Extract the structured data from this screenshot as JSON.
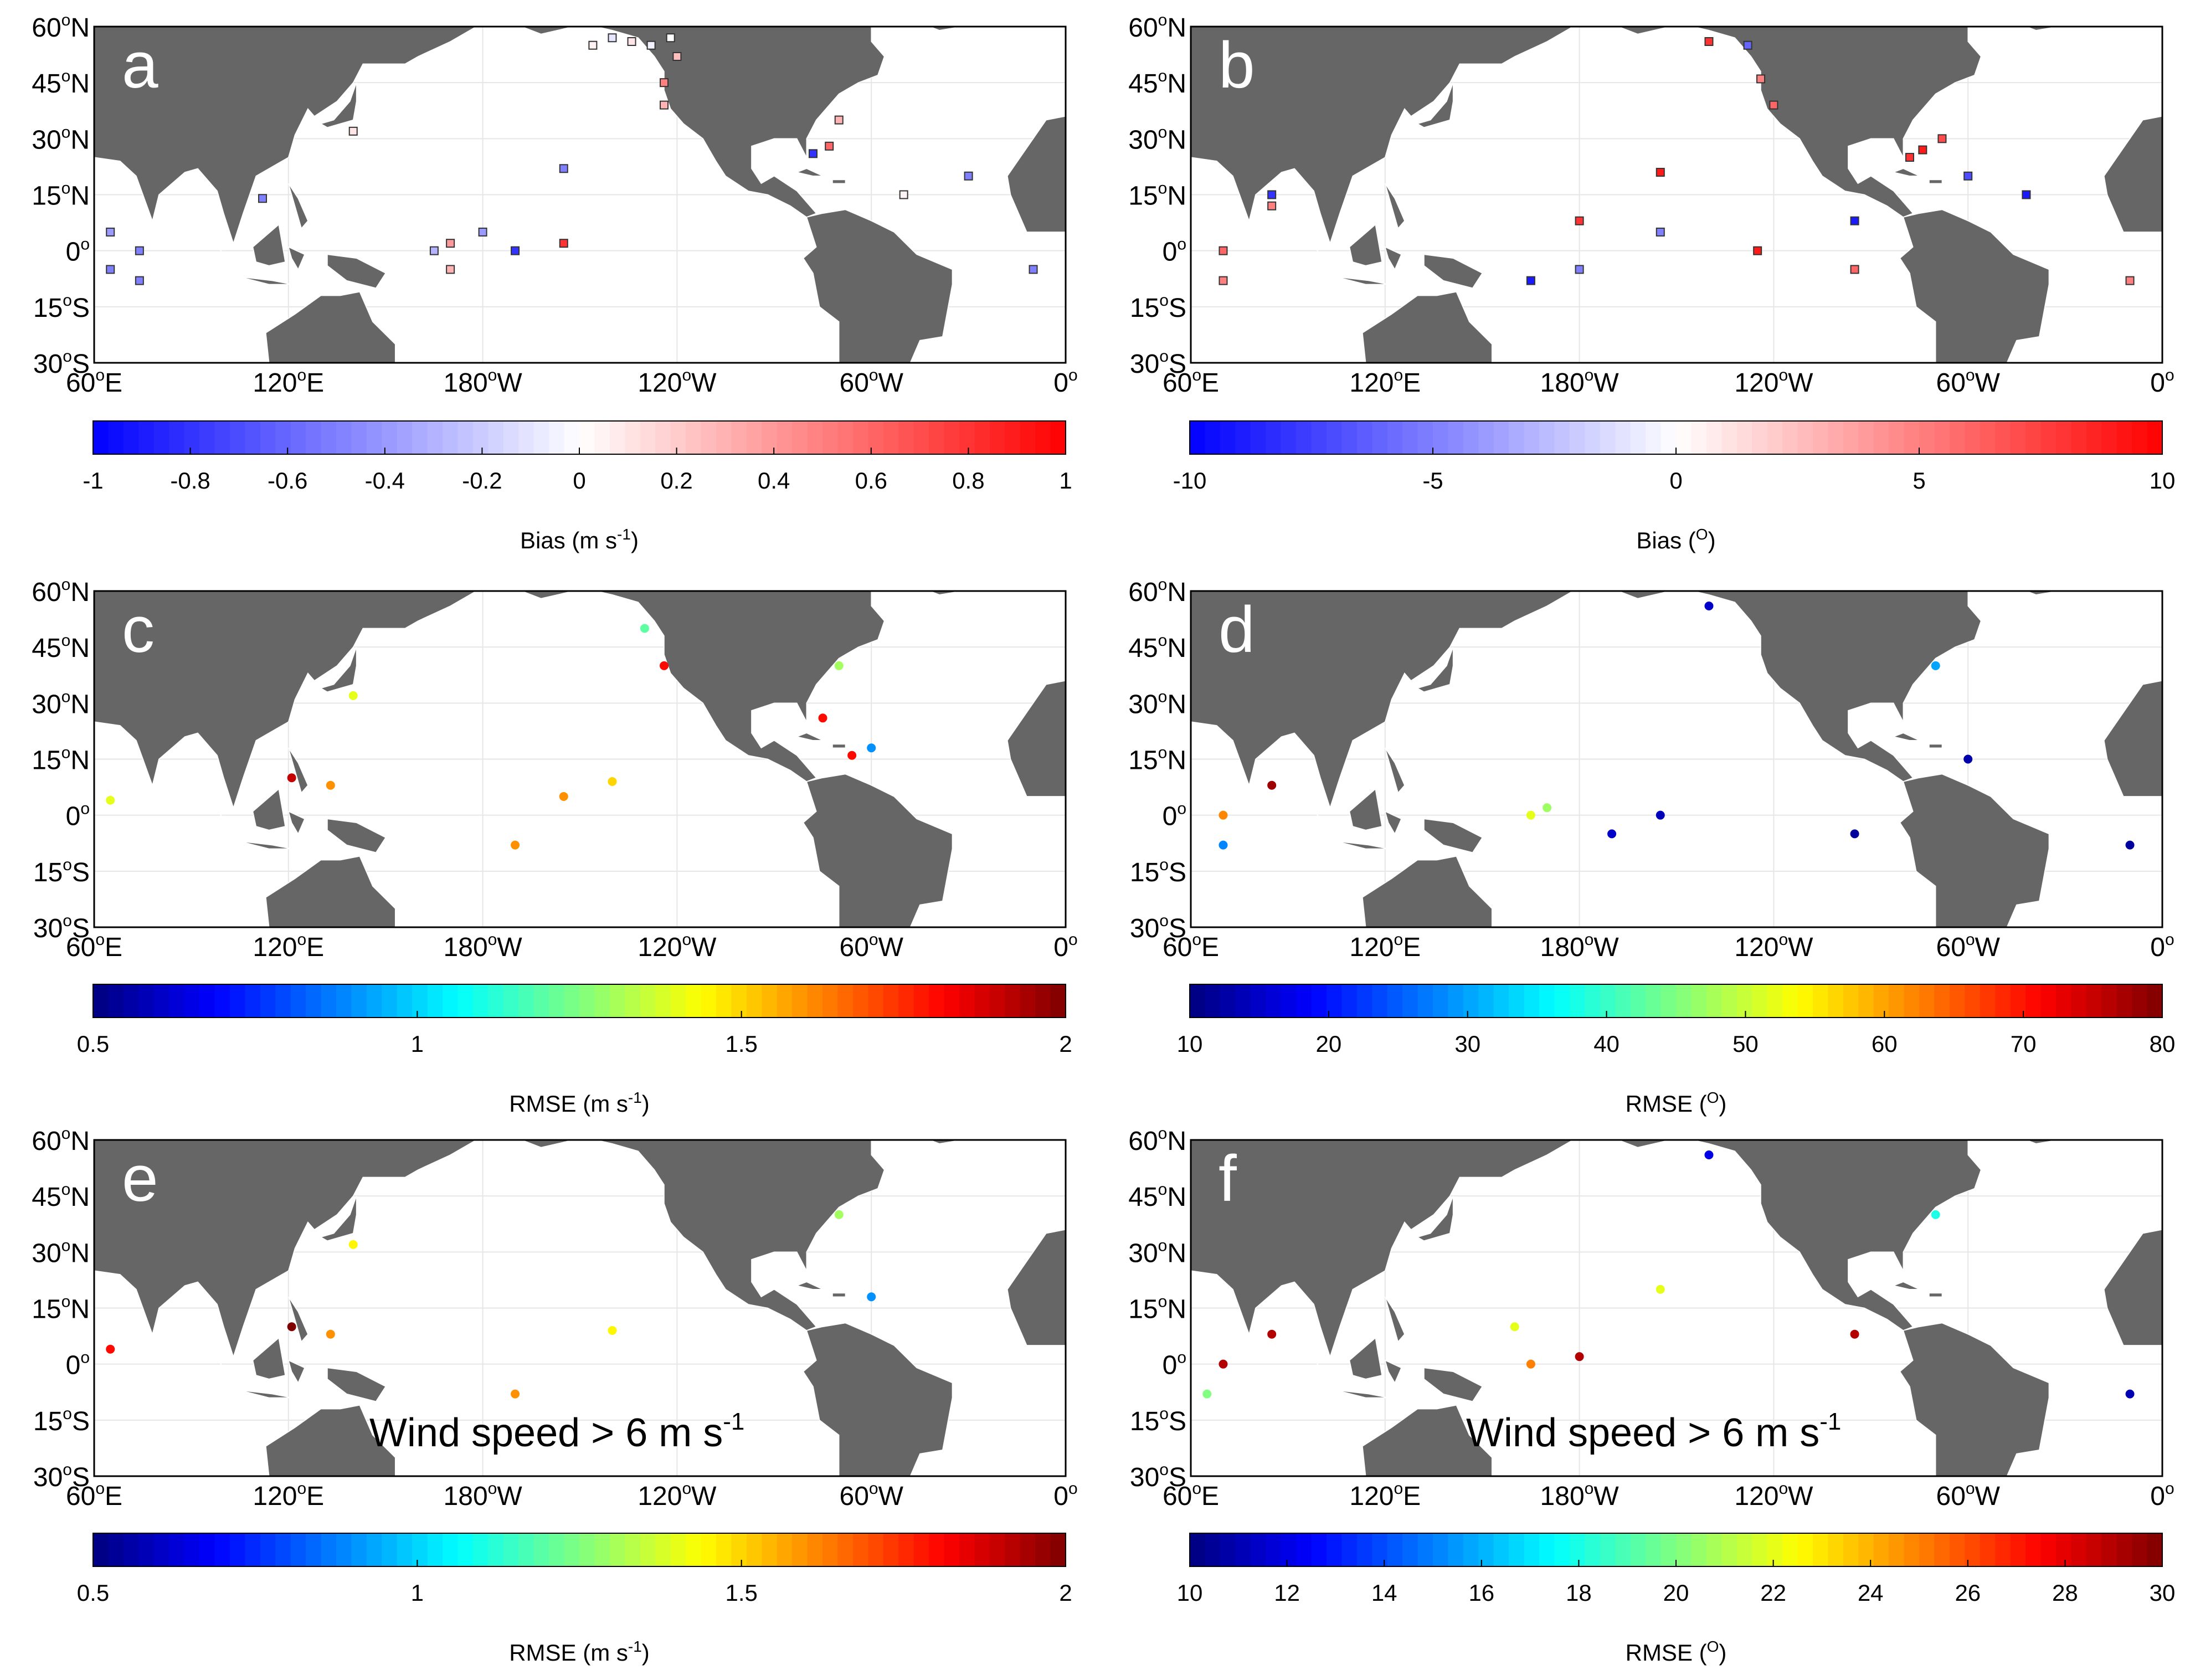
{
  "chart_data": [
    {
      "panel": "a",
      "type": "scatter",
      "marker": "square",
      "lat_ticks": [
        "60",
        "45",
        "30",
        "15",
        "0",
        "15",
        "30"
      ],
      "lat_hemi": [
        "N",
        "N",
        "N",
        "N",
        "",
        "S",
        "S"
      ],
      "lon_ticks": [
        "60",
        "120",
        "180",
        "120",
        "60",
        "0"
      ],
      "lon_hemi": [
        "E",
        "E",
        "W",
        "W",
        "W",
        ""
      ],
      "colormap": "bwr",
      "clim": [
        -1,
        1
      ],
      "colorbar_ticks": [
        "-1",
        "-0.8",
        "-0.6",
        "-0.4",
        "-0.2",
        "0",
        "0.2",
        "0.4",
        "0.6",
        "0.8",
        "1"
      ],
      "colorbar_label": "Bias (m s",
      "colorbar_label_sup": "-1",
      "colorbar_label_end": ")",
      "points": [
        {
          "lon": 214,
          "lat": 55,
          "value": 0.05
        },
        {
          "lon": 220,
          "lat": 57,
          "value": -0.1
        },
        {
          "lon": 226,
          "lat": 56,
          "value": 0.1
        },
        {
          "lon": 232,
          "lat": 55,
          "value": -0.05
        },
        {
          "lon": 238,
          "lat": 57,
          "value": 0.0
        },
        {
          "lon": 240,
          "lat": 52,
          "value": 0.25
        },
        {
          "lon": 236,
          "lat": 45,
          "value": 0.5
        },
        {
          "lon": 236,
          "lat": 39,
          "value": 0.3
        },
        {
          "lon": 287,
          "lat": 28,
          "value": 0.6
        },
        {
          "lon": 282,
          "lat": 26,
          "value": -0.8
        },
        {
          "lon": 290,
          "lat": 35,
          "value": 0.3
        },
        {
          "lon": 112,
          "lat": 14,
          "value": -0.5
        },
        {
          "lon": 65,
          "lat": 5,
          "value": -0.4
        },
        {
          "lon": 65,
          "lat": -5,
          "value": -0.5
        },
        {
          "lon": 74,
          "lat": 0,
          "value": -0.5
        },
        {
          "lon": 74,
          "lat": -8,
          "value": -0.5
        },
        {
          "lon": 330,
          "lat": 20,
          "value": -0.5
        },
        {
          "lon": 350,
          "lat": -5,
          "value": -0.5
        },
        {
          "lon": 170,
          "lat": 2,
          "value": 0.4
        },
        {
          "lon": 170,
          "lat": -5,
          "value": 0.3
        },
        {
          "lon": 190,
          "lat": 0,
          "value": -0.8
        },
        {
          "lon": 205,
          "lat": 2,
          "value": 0.8
        },
        {
          "lon": 165,
          "lat": 0,
          "value": -0.3
        },
        {
          "lon": 180,
          "lat": 5,
          "value": -0.4
        },
        {
          "lon": 140,
          "lat": 32,
          "value": 0.1
        },
        {
          "lon": 205,
          "lat": 22,
          "value": -0.5
        },
        {
          "lon": 310,
          "lat": 15,
          "value": 0.05
        }
      ]
    },
    {
      "panel": "b",
      "type": "scatter",
      "marker": "square",
      "colormap": "bwr",
      "clim": [
        -10,
        10
      ],
      "colorbar_ticks": [
        "-10",
        "-5",
        "0",
        "5",
        "10"
      ],
      "colorbar_label": "Bias (",
      "colorbar_label_sup": "O",
      "colorbar_label_end": ")",
      "points": [
        {
          "lon": 220,
          "lat": 56,
          "value": 8
        },
        {
          "lon": 232,
          "lat": 55,
          "value": -6
        },
        {
          "lon": 236,
          "lat": 46,
          "value": 5
        },
        {
          "lon": 240,
          "lat": 39,
          "value": 6
        },
        {
          "lon": 286,
          "lat": 27,
          "value": 9
        },
        {
          "lon": 282,
          "lat": 25,
          "value": 8
        },
        {
          "lon": 292,
          "lat": 30,
          "value": 7
        },
        {
          "lon": 300,
          "lat": 20,
          "value": -7
        },
        {
          "lon": 318,
          "lat": 15,
          "value": -9
        },
        {
          "lon": 350,
          "lat": -8,
          "value": 5
        },
        {
          "lon": 70,
          "lat": 0,
          "value": 6
        },
        {
          "lon": 70,
          "lat": -8,
          "value": 5
        },
        {
          "lon": 85,
          "lat": 12,
          "value": 5
        },
        {
          "lon": 85,
          "lat": 15,
          "value": -8
        },
        {
          "lon": 165,
          "lat": -8,
          "value": -9
        },
        {
          "lon": 180,
          "lat": 8,
          "value": 8
        },
        {
          "lon": 180,
          "lat": -5,
          "value": -5
        },
        {
          "lon": 205,
          "lat": 5,
          "value": -5
        },
        {
          "lon": 205,
          "lat": 21,
          "value": 9
        },
        {
          "lon": 235,
          "lat": 0,
          "value": 9
        },
        {
          "lon": 265,
          "lat": 8,
          "value": -9
        },
        {
          "lon": 265,
          "lat": -5,
          "value": 6
        }
      ]
    },
    {
      "panel": "c",
      "type": "scatter",
      "marker": "circle",
      "colormap": "jet",
      "clim": [
        0.5,
        2
      ],
      "colorbar_ticks": [
        "0.5",
        "1",
        "1.5",
        "2"
      ],
      "colorbar_label": "RMSE (m s",
      "colorbar_label_sup": "-1",
      "colorbar_label_end": ")",
      "points": [
        {
          "lon": 236,
          "lat": 40,
          "value": 1.8
        },
        {
          "lon": 285,
          "lat": 26,
          "value": 1.8
        },
        {
          "lon": 121,
          "lat": 10,
          "value": 1.9
        },
        {
          "lon": 133,
          "lat": 8,
          "value": 1.6
        },
        {
          "lon": 140,
          "lat": 32,
          "value": 1.4
        },
        {
          "lon": 294,
          "lat": 16,
          "value": 1.8
        },
        {
          "lon": 65,
          "lat": 4,
          "value": 1.4
        },
        {
          "lon": 190,
          "lat": -8,
          "value": 1.6
        },
        {
          "lon": 205,
          "lat": 5,
          "value": 1.6
        },
        {
          "lon": 220,
          "lat": 9,
          "value": 1.5
        },
        {
          "lon": 290,
          "lat": 40,
          "value": 1.3
        },
        {
          "lon": 230,
          "lat": 50,
          "value": 1.2
        },
        {
          "lon": 300,
          "lat": 18,
          "value": 0.9
        }
      ]
    },
    {
      "panel": "d",
      "type": "scatter",
      "marker": "circle",
      "colormap": "jet",
      "clim": [
        10,
        80
      ],
      "colorbar_ticks": [
        "10",
        "20",
        "30",
        "40",
        "50",
        "60",
        "70",
        "80"
      ],
      "colorbar_label": "RMSE (",
      "colorbar_label_sup": "O",
      "colorbar_label_end": ")",
      "points": [
        {
          "lon": 85,
          "lat": 8,
          "value": 78
        },
        {
          "lon": 70,
          "lat": 0,
          "value": 62
        },
        {
          "lon": 165,
          "lat": 0,
          "value": 52
        },
        {
          "lon": 170,
          "lat": 2,
          "value": 47
        },
        {
          "lon": 190,
          "lat": -5,
          "value": 15
        },
        {
          "lon": 205,
          "lat": 0,
          "value": 14
        },
        {
          "lon": 265,
          "lat": -5,
          "value": 12
        },
        {
          "lon": 300,
          "lat": 15,
          "value": 13
        },
        {
          "lon": 350,
          "lat": -8,
          "value": 12
        },
        {
          "lon": 220,
          "lat": 56,
          "value": 15
        },
        {
          "lon": 290,
          "lat": 40,
          "value": 30
        },
        {
          "lon": 70,
          "lat": -8,
          "value": 28
        }
      ]
    },
    {
      "panel": "e",
      "type": "scatter",
      "marker": "circle",
      "colormap": "jet",
      "clim": [
        0.5,
        2
      ],
      "colorbar_ticks": [
        "0.5",
        "1",
        "1.5",
        "2"
      ],
      "colorbar_label": "RMSE (m s",
      "colorbar_label_sup": "-1",
      "colorbar_label_end": ")",
      "annotation": "Wind speed > 6 m s",
      "annotation_sup": "-1",
      "points": [
        {
          "lon": 121,
          "lat": 10,
          "value": 2.0
        },
        {
          "lon": 65,
          "lat": 4,
          "value": 1.8
        },
        {
          "lon": 133,
          "lat": 8,
          "value": 1.6
        },
        {
          "lon": 140,
          "lat": 32,
          "value": 1.45
        },
        {
          "lon": 190,
          "lat": -8,
          "value": 1.6
        },
        {
          "lon": 220,
          "lat": 9,
          "value": 1.45
        },
        {
          "lon": 290,
          "lat": 40,
          "value": 1.3
        },
        {
          "lon": 300,
          "lat": 18,
          "value": 0.9
        }
      ]
    },
    {
      "panel": "f",
      "type": "scatter",
      "marker": "circle",
      "colormap": "jet",
      "clim": [
        10,
        30
      ],
      "colorbar_ticks": [
        "10",
        "12",
        "14",
        "16",
        "18",
        "20",
        "22",
        "24",
        "26",
        "28",
        "30"
      ],
      "colorbar_label": "RMSE (",
      "colorbar_label_sup": "O",
      "colorbar_label_end": ")",
      "annotation": "Wind speed > 6 m s",
      "annotation_sup": "-1",
      "points": [
        {
          "lon": 85,
          "lat": 8,
          "value": 29
        },
        {
          "lon": 70,
          "lat": 0,
          "value": 29
        },
        {
          "lon": 165,
          "lat": 0,
          "value": 25
        },
        {
          "lon": 160,
          "lat": 10,
          "value": 22
        },
        {
          "lon": 180,
          "lat": 2,
          "value": 29
        },
        {
          "lon": 205,
          "lat": 20,
          "value": 22
        },
        {
          "lon": 265,
          "lat": 8,
          "value": 29
        },
        {
          "lon": 350,
          "lat": -8,
          "value": 11
        },
        {
          "lon": 220,
          "lat": 56,
          "value": 12
        },
        {
          "lon": 290,
          "lat": 40,
          "value": 18
        },
        {
          "lon": 65,
          "lat": -8,
          "value": 20
        }
      ]
    }
  ]
}
